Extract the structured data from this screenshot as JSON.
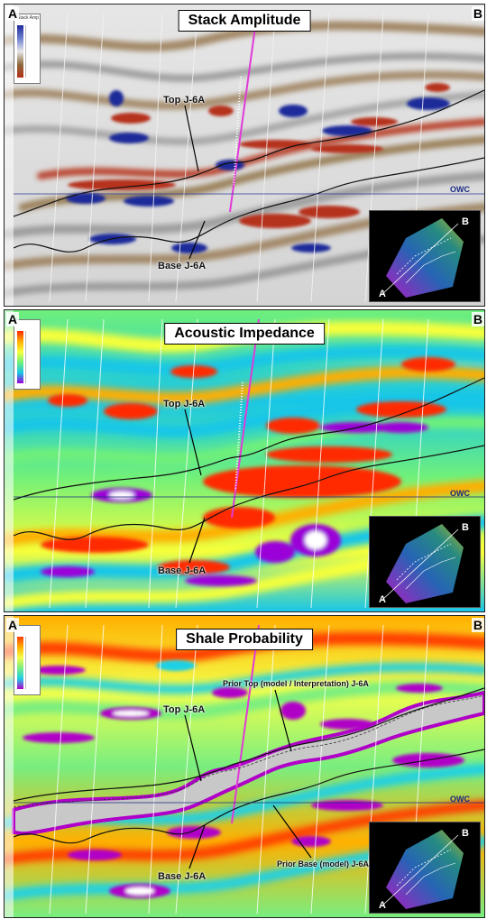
{
  "panels": [
    {
      "title": "Stack Amplitude",
      "corner_left": "A",
      "corner_right": "B",
      "legend_title": "Stack Amp",
      "labels": {
        "top": "Top J-6A",
        "base": "Base J-6A",
        "owc": "OWC"
      },
      "inset": {
        "a": "A",
        "b": "B"
      }
    },
    {
      "title": "Acoustic Impedance",
      "corner_left": "A",
      "corner_right": "B",
      "labels": {
        "top": "Top J-6A",
        "base": "Base J-6A",
        "owc": "OWC"
      },
      "inset": {
        "a": "A",
        "b": "B"
      }
    },
    {
      "title": "Shale Probability",
      "corner_left": "A",
      "corner_right": "B",
      "labels": {
        "top": "Top J-6A",
        "base": "Base J-6A",
        "owc": "OWC",
        "prior_top": "Prior Top (model / Interpretation) J-6A",
        "prior_base": "Prior Base (model) J-6A"
      },
      "inset": {
        "a": "A",
        "b": "B"
      }
    }
  ],
  "colors": {
    "stack": [
      "#1d2a9a",
      "#6b7fd0",
      "#e8e8e8",
      "#8c6a3c",
      "#b5301a"
    ],
    "impedance": [
      "#ff2a00",
      "#ffae00",
      "#f6ff3a",
      "#6ff07a",
      "#18c6e8",
      "#9b00d8"
    ],
    "shale": [
      "#ff3d00",
      "#ffb000",
      "#f3ff4a",
      "#78ee80",
      "#1ed0e6",
      "#b000c8",
      "#c8c8c8"
    ]
  }
}
